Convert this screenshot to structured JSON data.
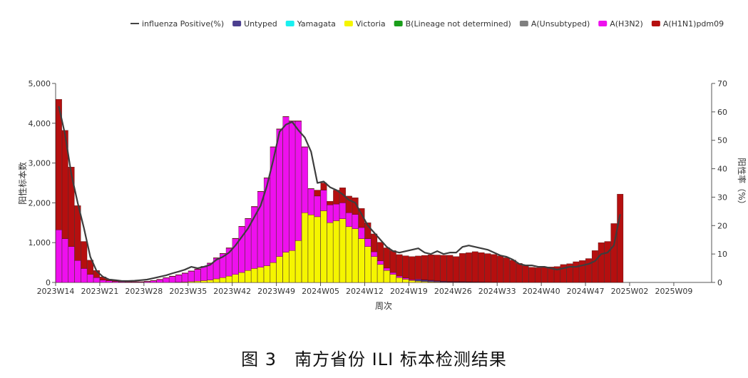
{
  "caption": "图 3　南方省份 ILI 标本检测结果",
  "chart_data": {
    "type": "bar",
    "stacked": true,
    "xlabel": "周次",
    "ylabel_left": "阳性标本数",
    "ylabel_right": "阳性率（%）",
    "ylim_left": [
      0,
      5000
    ],
    "ylim_right": [
      0,
      70
    ],
    "left_ticks": [
      "0",
      "1,000",
      "2,000",
      "3,000",
      "4,000",
      "5,000"
    ],
    "right_ticks": [
      "0",
      "10",
      "20",
      "30",
      "40",
      "50",
      "60",
      "70"
    ],
    "x_tick_labels": [
      "2023W14",
      "2023W21",
      "2023W28",
      "2023W35",
      "2023W42",
      "2023W49",
      "2024W05",
      "2024W12",
      "2024W19",
      "2024W26",
      "2024W33",
      "2024W40",
      "2024W47",
      "2025W02",
      "2025W09"
    ],
    "legend_position": "top",
    "legend": [
      {
        "label": "influenza Positive(%)",
        "kind": "line",
        "color": "#444444"
      },
      {
        "label": "Untyped",
        "kind": "bar",
        "color": "#4b3f8f"
      },
      {
        "label": "Yamagata",
        "kind": "bar",
        "color": "#19f0f0"
      },
      {
        "label": "Victoria",
        "kind": "bar",
        "color": "#f5f500"
      },
      {
        "label": "B(Lineage not determined)",
        "kind": "bar",
        "color": "#1a9e1a"
      },
      {
        "label": "A(Unsubtyped)",
        "kind": "bar",
        "color": "#7f7f7f"
      },
      {
        "label": "A(H3N2)",
        "kind": "bar",
        "color": "#ee10ee"
      },
      {
        "label": "A(H1N1)pdm09",
        "kind": "bar",
        "color": "#b50f0f"
      }
    ],
    "weeks": [
      "2023W14",
      "2023W15",
      "2023W16",
      "2023W17",
      "2023W18",
      "2023W19",
      "2023W20",
      "2023W21",
      "2023W22",
      "2023W23",
      "2023W24",
      "2023W25",
      "2023W26",
      "2023W27",
      "2023W28",
      "2023W29",
      "2023W30",
      "2023W31",
      "2023W32",
      "2023W33",
      "2023W34",
      "2023W35",
      "2023W36",
      "2023W37",
      "2023W38",
      "2023W39",
      "2023W40",
      "2023W41",
      "2023W42",
      "2023W43",
      "2023W44",
      "2023W45",
      "2023W46",
      "2023W47",
      "2023W48",
      "2023W49",
      "2023W50",
      "2023W51",
      "2023W52",
      "2024W01",
      "2024W02",
      "2024W03",
      "2024W04",
      "2024W05",
      "2024W06",
      "2024W07",
      "2024W08",
      "2024W09",
      "2024W10",
      "2024W11",
      "2024W12",
      "2024W13",
      "2024W14",
      "2024W15",
      "2024W16",
      "2024W17",
      "2024W18",
      "2024W19",
      "2024W20",
      "2024W21",
      "2024W22",
      "2024W23",
      "2024W24",
      "2024W25",
      "2024W26",
      "2024W27",
      "2024W28",
      "2024W29",
      "2024W30",
      "2024W31",
      "2024W32",
      "2024W33",
      "2024W34",
      "2024W35",
      "2024W36",
      "2024W37",
      "2024W38",
      "2024W39",
      "2024W40",
      "2024W41",
      "2024W42",
      "2024W43",
      "2024W44",
      "2024W45",
      "2024W46",
      "2024W47",
      "2024W48",
      "2024W49",
      "2024W50",
      "2024W51"
    ],
    "series": [
      {
        "name": "Untyped",
        "color": "#4b3f8f",
        "values": [
          0,
          0,
          0,
          0,
          0,
          0,
          0,
          0,
          0,
          0,
          0,
          0,
          0,
          0,
          0,
          0,
          0,
          0,
          0,
          0,
          0,
          0,
          0,
          0,
          0,
          0,
          0,
          0,
          0,
          0,
          0,
          0,
          0,
          0,
          0,
          0,
          0,
          0,
          0,
          0,
          0,
          0,
          0,
          0,
          0,
          0,
          0,
          0,
          0,
          0,
          0,
          0,
          0,
          0,
          0,
          0,
          0,
          40,
          40,
          30,
          20,
          15,
          10,
          10,
          10,
          8,
          5,
          5,
          0,
          0,
          0,
          0,
          0,
          0,
          0,
          0,
          0,
          0,
          0,
          0,
          0,
          0,
          0,
          0,
          0,
          0,
          0,
          0,
          0,
          0
        ]
      },
      {
        "name": "Yamagata",
        "color": "#19f0f0",
        "values": [
          0,
          0,
          0,
          0,
          0,
          0,
          0,
          0,
          0,
          0,
          0,
          0,
          0,
          0,
          0,
          0,
          0,
          0,
          0,
          0,
          0,
          0,
          0,
          0,
          0,
          0,
          0,
          0,
          0,
          0,
          0,
          0,
          0,
          0,
          0,
          0,
          0,
          0,
          0,
          0,
          0,
          0,
          0,
          0,
          0,
          0,
          0,
          0,
          0,
          0,
          0,
          0,
          0,
          0,
          0,
          0,
          0,
          0,
          0,
          0,
          0,
          0,
          0,
          0,
          0,
          0,
          0,
          0,
          0,
          0,
          0,
          0,
          0,
          0,
          0,
          0,
          0,
          0,
          0,
          0,
          0,
          0,
          0,
          0,
          0,
          0,
          0,
          0,
          0,
          0
        ]
      },
      {
        "name": "Victoria",
        "color": "#f5f500",
        "values": [
          0,
          0,
          0,
          0,
          0,
          0,
          0,
          0,
          0,
          0,
          0,
          0,
          0,
          0,
          0,
          0,
          0,
          0,
          0,
          5,
          10,
          20,
          30,
          45,
          60,
          90,
          120,
          160,
          200,
          250,
          300,
          350,
          380,
          420,
          500,
          650,
          760,
          800,
          1050,
          1750,
          1700,
          1650,
          1800,
          1500,
          1550,
          1600,
          1400,
          1350,
          1100,
          900,
          650,
          450,
          300,
          200,
          120,
          80,
          50,
          30,
          20,
          15,
          10,
          8,
          5,
          5,
          5,
          3,
          3,
          2,
          2,
          2,
          0,
          0,
          0,
          0,
          0,
          0,
          0,
          0,
          0,
          0,
          0,
          0,
          0,
          0,
          0,
          0,
          0,
          0,
          0,
          0
        ]
      },
      {
        "name": "B(Lineage not determined)",
        "color": "#1a9e1a",
        "values": [
          0,
          0,
          0,
          0,
          0,
          0,
          0,
          0,
          0,
          0,
          0,
          0,
          0,
          0,
          0,
          0,
          0,
          0,
          0,
          0,
          0,
          0,
          0,
          0,
          0,
          0,
          0,
          0,
          0,
          0,
          0,
          0,
          0,
          0,
          0,
          0,
          0,
          0,
          0,
          0,
          0,
          0,
          0,
          0,
          0,
          0,
          0,
          0,
          0,
          0,
          0,
          0,
          0,
          0,
          0,
          0,
          0,
          0,
          0,
          0,
          0,
          0,
          0,
          0,
          0,
          0,
          0,
          0,
          0,
          0,
          0,
          0,
          0,
          0,
          0,
          0,
          0,
          0,
          0,
          0,
          0,
          0,
          0,
          0,
          0,
          0,
          0,
          0,
          0,
          0
        ]
      },
      {
        "name": "A(Unsubtyped)",
        "color": "#7f7f7f",
        "values": [
          0,
          0,
          0,
          0,
          0,
          0,
          0,
          0,
          0,
          0,
          0,
          0,
          0,
          0,
          0,
          0,
          0,
          0,
          0,
          0,
          0,
          0,
          0,
          0,
          0,
          0,
          0,
          0,
          0,
          0,
          0,
          0,
          0,
          0,
          0,
          0,
          0,
          0,
          0,
          0,
          0,
          0,
          0,
          0,
          0,
          0,
          0,
          0,
          0,
          0,
          0,
          0,
          0,
          0,
          0,
          0,
          0,
          0,
          0,
          0,
          0,
          0,
          0,
          0,
          0,
          0,
          0,
          0,
          0,
          0,
          0,
          0,
          0,
          0,
          0,
          0,
          0,
          0,
          0,
          0,
          0,
          0,
          0,
          0,
          0,
          0,
          0,
          0,
          0,
          0
        ]
      },
      {
        "name": "A(H3N2)",
        "color": "#ee10ee",
        "values": [
          1320,
          1100,
          900,
          550,
          350,
          200,
          120,
          60,
          40,
          25,
          15,
          10,
          10,
          10,
          20,
          40,
          70,
          110,
          150,
          180,
          220,
          260,
          300,
          350,
          420,
          520,
          600,
          700,
          900,
          1150,
          1300,
          1550,
          1900,
          2200,
          2900,
          3200,
          3400,
          3250,
          3000,
          1650,
          650,
          520,
          520,
          450,
          420,
          400,
          350,
          360,
          280,
          200,
          120,
          90,
          60,
          50,
          40,
          30,
          20,
          15,
          10,
          10,
          10,
          10,
          8,
          5,
          5,
          5,
          5,
          3,
          3,
          3,
          0,
          0,
          0,
          0,
          0,
          0,
          0,
          0,
          0,
          0,
          0,
          0,
          0,
          0,
          0,
          0,
          0,
          0,
          0,
          0
        ]
      },
      {
        "name": "A(H1N1)pdm09",
        "color": "#b50f0f",
        "values": [
          3280,
          2720,
          2000,
          1380,
          680,
          360,
          180,
          80,
          40,
          25,
          15,
          15,
          10,
          10,
          10,
          10,
          10,
          10,
          10,
          10,
          10,
          10,
          10,
          10,
          10,
          10,
          10,
          10,
          10,
          10,
          10,
          10,
          10,
          10,
          10,
          10,
          10,
          10,
          10,
          10,
          10,
          150,
          180,
          90,
          350,
          380,
          420,
          420,
          480,
          400,
          450,
          470,
          510,
          550,
          540,
          560,
          580,
          580,
          610,
          640,
          650,
          650,
          660,
          630,
          710,
          730,
          760,
          740,
          720,
          700,
          670,
          620,
          560,
          480,
          420,
          380,
          370,
          380,
          390,
          400,
          450,
          470,
          520,
          550,
          600,
          800,
          1000,
          1030,
          1480,
          2220
        ]
      }
    ],
    "positive_rate": [
      62.0,
      52.0,
      38.0,
      28.0,
      19.0,
      9.0,
      4.0,
      2.0,
      1.0,
      0.8,
      0.5,
      0.5,
      0.6,
      0.8,
      1.0,
      1.5,
      2.0,
      2.5,
      3.2,
      3.8,
      4.5,
      5.5,
      5.0,
      5.5,
      6.2,
      8.0,
      9.0,
      10.5,
      13.0,
      16.0,
      19.0,
      23.0,
      27.0,
      34.0,
      43.0,
      53.0,
      55.5,
      56.5,
      53.5,
      51.0,
      46.0,
      35.0,
      35.5,
      33.5,
      32.5,
      31.0,
      29.0,
      28.0,
      24.0,
      20.0,
      17.5,
      15.0,
      12.5,
      11.0,
      10.5,
      11.0,
      11.5,
      12.0,
      10.5,
      10.0,
      11.0,
      10.0,
      10.5,
      10.5,
      12.5,
      13.0,
      12.5,
      12.0,
      11.5,
      10.5,
      9.5,
      9.0,
      8.0,
      6.5,
      6.0,
      6.0,
      5.5,
      5.5,
      5.0,
      4.5,
      5.0,
      5.5,
      5.5,
      6.0,
      6.5,
      7.5,
      10.0,
      10.5,
      13.0,
      24.0
    ]
  }
}
